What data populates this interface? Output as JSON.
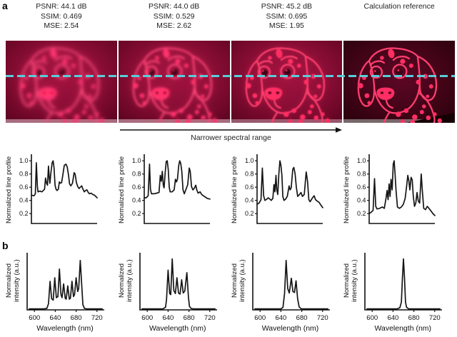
{
  "panels": {
    "a": "a",
    "b": "b"
  },
  "header": {
    "columns": [
      {
        "lines": [
          "PSNR: 44.1 dB",
          "SSIM: 0.469",
          "MSE: 2.54"
        ]
      },
      {
        "lines": [
          "PSNR: 44.0 dB",
          "SSIM: 0.529",
          "MSE: 2.62"
        ]
      },
      {
        "lines": [
          "PSNR: 45.2 dB",
          "SSIM: 0.695",
          "MSE: 1.95"
        ]
      },
      {
        "lines": [
          "",
          "Calculation reference",
          ""
        ]
      }
    ]
  },
  "arrow": {
    "label": "Narrower spectral range"
  },
  "colors": {
    "scan_line": "#58cdd9",
    "image_bg_bright": "#8a0e36",
    "image_bg_dark": "#33020f",
    "dog_line": "#ff3f6e",
    "dog_spot": "#ff2e63",
    "plot_line": "#151515"
  },
  "chart_data": [
    {
      "type": "line",
      "panel": "a",
      "name": "line_profile_1",
      "ylabel": "Normalized line profile",
      "yticks": [
        0.2,
        0.4,
        0.6,
        0.8,
        1.0
      ],
      "ylim": [
        0.05,
        1.1
      ],
      "xlim": [
        0,
        1
      ],
      "points": [
        [
          0,
          0.48
        ],
        [
          0.04,
          0.47
        ],
        [
          0.06,
          0.5
        ],
        [
          0.075,
          0.97
        ],
        [
          0.09,
          0.62
        ],
        [
          0.1,
          0.53
        ],
        [
          0.13,
          0.54
        ],
        [
          0.16,
          0.53
        ],
        [
          0.18,
          0.55
        ],
        [
          0.2,
          0.57
        ],
        [
          0.215,
          0.74
        ],
        [
          0.23,
          0.66
        ],
        [
          0.245,
          0.63
        ],
        [
          0.26,
          0.92
        ],
        [
          0.272,
          0.74
        ],
        [
          0.282,
          0.66
        ],
        [
          0.295,
          0.8
        ],
        [
          0.315,
          0.97
        ],
        [
          0.33,
          1.0
        ],
        [
          0.345,
          0.89
        ],
        [
          0.36,
          0.63
        ],
        [
          0.375,
          0.57
        ],
        [
          0.39,
          0.55
        ],
        [
          0.41,
          0.57
        ],
        [
          0.425,
          0.68
        ],
        [
          0.44,
          0.66
        ],
        [
          0.46,
          0.67
        ],
        [
          0.48,
          0.8
        ],
        [
          0.5,
          0.93
        ],
        [
          0.525,
          0.95
        ],
        [
          0.545,
          0.91
        ],
        [
          0.565,
          0.78
        ],
        [
          0.58,
          0.65
        ],
        [
          0.6,
          0.62
        ],
        [
          0.625,
          0.66
        ],
        [
          0.65,
          0.82
        ],
        [
          0.665,
          0.8
        ],
        [
          0.685,
          0.67
        ],
        [
          0.705,
          0.61
        ],
        [
          0.725,
          0.58
        ],
        [
          0.745,
          0.6
        ],
        [
          0.765,
          0.62
        ],
        [
          0.785,
          0.57
        ],
        [
          0.805,
          0.53
        ],
        [
          0.825,
          0.55
        ],
        [
          0.845,
          0.56
        ],
        [
          0.865,
          0.52
        ],
        [
          0.885,
          0.5
        ],
        [
          0.91,
          0.51
        ],
        [
          0.935,
          0.49
        ],
        [
          0.96,
          0.48
        ],
        [
          1,
          0.44
        ]
      ]
    },
    {
      "type": "line",
      "panel": "a",
      "name": "line_profile_2",
      "ylabel": "Normalized line profile",
      "yticks": [
        0.2,
        0.4,
        0.6,
        0.8,
        1.0
      ],
      "ylim": [
        0.05,
        1.1
      ],
      "xlim": [
        0,
        1
      ],
      "points": [
        [
          0,
          0.44
        ],
        [
          0.03,
          0.44
        ],
        [
          0.06,
          0.47
        ],
        [
          0.08,
          0.95
        ],
        [
          0.095,
          0.57
        ],
        [
          0.11,
          0.5
        ],
        [
          0.15,
          0.5
        ],
        [
          0.19,
          0.51
        ],
        [
          0.225,
          0.52
        ],
        [
          0.245,
          0.78
        ],
        [
          0.26,
          0.69
        ],
        [
          0.275,
          0.84
        ],
        [
          0.29,
          0.63
        ],
        [
          0.302,
          0.59
        ],
        [
          0.318,
          0.82
        ],
        [
          0.335,
          0.99
        ],
        [
          0.35,
          1.0
        ],
        [
          0.365,
          0.87
        ],
        [
          0.38,
          0.6
        ],
        [
          0.395,
          0.53
        ],
        [
          0.425,
          0.53
        ],
        [
          0.455,
          0.56
        ],
        [
          0.475,
          0.72
        ],
        [
          0.49,
          0.68
        ],
        [
          0.505,
          0.72
        ],
        [
          0.525,
          0.93
        ],
        [
          0.54,
          1.0
        ],
        [
          0.555,
          0.96
        ],
        [
          0.572,
          0.84
        ],
        [
          0.59,
          0.56
        ],
        [
          0.61,
          0.5
        ],
        [
          0.64,
          0.58
        ],
        [
          0.662,
          0.64
        ],
        [
          0.685,
          0.89
        ],
        [
          0.7,
          0.84
        ],
        [
          0.72,
          0.61
        ],
        [
          0.74,
          0.56
        ],
        [
          0.76,
          0.58
        ],
        [
          0.785,
          0.63
        ],
        [
          0.8,
          0.56
        ],
        [
          0.82,
          0.51
        ],
        [
          0.85,
          0.53
        ],
        [
          0.875,
          0.49
        ],
        [
          0.9,
          0.47
        ],
        [
          0.93,
          0.45
        ],
        [
          0.96,
          0.43
        ],
        [
          1,
          0.42
        ]
      ]
    },
    {
      "type": "line",
      "panel": "a",
      "name": "line_profile_3",
      "ylabel": "Normalized line profile",
      "yticks": [
        0.2,
        0.4,
        0.6,
        0.8,
        1.0
      ],
      "ylim": [
        0.05,
        1.1
      ],
      "xlim": [
        0,
        1
      ],
      "points": [
        [
          0,
          0.34
        ],
        [
          0.03,
          0.36
        ],
        [
          0.06,
          0.41
        ],
        [
          0.08,
          0.89
        ],
        [
          0.1,
          0.47
        ],
        [
          0.12,
          0.4
        ],
        [
          0.15,
          0.42
        ],
        [
          0.17,
          0.44
        ],
        [
          0.195,
          0.42
        ],
        [
          0.215,
          0.4
        ],
        [
          0.24,
          0.43
        ],
        [
          0.258,
          0.64
        ],
        [
          0.272,
          0.53
        ],
        [
          0.288,
          0.78
        ],
        [
          0.3,
          0.56
        ],
        [
          0.315,
          0.49
        ],
        [
          0.332,
          0.8
        ],
        [
          0.348,
          1.0
        ],
        [
          0.362,
          0.94
        ],
        [
          0.378,
          0.78
        ],
        [
          0.392,
          0.46
        ],
        [
          0.41,
          0.4
        ],
        [
          0.435,
          0.42
        ],
        [
          0.46,
          0.46
        ],
        [
          0.488,
          0.62
        ],
        [
          0.503,
          0.56
        ],
        [
          0.52,
          0.59
        ],
        [
          0.543,
          0.87
        ],
        [
          0.56,
          0.9
        ],
        [
          0.578,
          0.81
        ],
        [
          0.598,
          0.6
        ],
        [
          0.618,
          0.46
        ],
        [
          0.645,
          0.49
        ],
        [
          0.668,
          0.52
        ],
        [
          0.69,
          0.46
        ],
        [
          0.718,
          0.49
        ],
        [
          0.748,
          0.83
        ],
        [
          0.768,
          0.69
        ],
        [
          0.788,
          0.41
        ],
        [
          0.808,
          0.38
        ],
        [
          0.838,
          0.43
        ],
        [
          0.868,
          0.47
        ],
        [
          0.89,
          0.41
        ],
        [
          0.915,
          0.39
        ],
        [
          0.945,
          0.37
        ],
        [
          0.97,
          0.33
        ],
        [
          1,
          0.29
        ]
      ]
    },
    {
      "type": "line",
      "panel": "a",
      "name": "line_profile_4",
      "ylabel": "Normalized line profile",
      "yticks": [
        0.2,
        0.4,
        0.6,
        0.8,
        1.0
      ],
      "ylim": [
        0.05,
        1.1
      ],
      "xlim": [
        0,
        1
      ],
      "points": [
        [
          0,
          0.2
        ],
        [
          0.03,
          0.22
        ],
        [
          0.06,
          0.25
        ],
        [
          0.082,
          0.73
        ],
        [
          0.1,
          0.31
        ],
        [
          0.12,
          0.27
        ],
        [
          0.16,
          0.28
        ],
        [
          0.2,
          0.3
        ],
        [
          0.23,
          0.28
        ],
        [
          0.258,
          0.44
        ],
        [
          0.273,
          0.55
        ],
        [
          0.288,
          0.41
        ],
        [
          0.303,
          0.65
        ],
        [
          0.318,
          0.46
        ],
        [
          0.333,
          0.72
        ],
        [
          0.35,
          0.56
        ],
        [
          0.366,
          0.95
        ],
        [
          0.38,
          1.0
        ],
        [
          0.395,
          0.79
        ],
        [
          0.41,
          0.54
        ],
        [
          0.43,
          0.3
        ],
        [
          0.46,
          0.28
        ],
        [
          0.49,
          0.3
        ],
        [
          0.52,
          0.34
        ],
        [
          0.548,
          0.43
        ],
        [
          0.572,
          0.63
        ],
        [
          0.588,
          0.78
        ],
        [
          0.603,
          0.7
        ],
        [
          0.62,
          0.56
        ],
        [
          0.638,
          0.75
        ],
        [
          0.655,
          0.71
        ],
        [
          0.672,
          0.46
        ],
        [
          0.69,
          0.31
        ],
        [
          0.71,
          0.36
        ],
        [
          0.728,
          0.52
        ],
        [
          0.748,
          0.39
        ],
        [
          0.768,
          0.36
        ],
        [
          0.792,
          0.8
        ],
        [
          0.81,
          0.54
        ],
        [
          0.83,
          0.28
        ],
        [
          0.858,
          0.26
        ],
        [
          0.885,
          0.31
        ],
        [
          0.91,
          0.28
        ],
        [
          0.94,
          0.24
        ],
        [
          0.97,
          0.2
        ],
        [
          1,
          0.17
        ]
      ]
    },
    {
      "type": "line",
      "panel": "b",
      "name": "spectrum_1",
      "ylabel": "Normalized\nintensity (a.u.)",
      "xlabel": "Wavelength (nm)",
      "xticks": [
        600,
        640,
        680,
        720
      ],
      "xlim": [
        586,
        734
      ],
      "ylim": [
        0,
        1.12
      ],
      "points": [
        [
          590,
          0.02
        ],
        [
          618,
          0.02
        ],
        [
          624,
          0.03
        ],
        [
          627,
          0.12
        ],
        [
          630,
          0.56
        ],
        [
          633,
          0.22
        ],
        [
          636,
          0.19
        ],
        [
          639,
          0.63
        ],
        [
          642,
          0.24
        ],
        [
          645,
          0.26
        ],
        [
          648,
          0.8
        ],
        [
          651,
          0.3
        ],
        [
          653,
          0.24
        ],
        [
          656,
          0.51
        ],
        [
          659,
          0.23
        ],
        [
          661,
          0.21
        ],
        [
          664,
          0.47
        ],
        [
          667,
          0.21
        ],
        [
          669,
          0.23
        ],
        [
          672,
          0.56
        ],
        [
          675,
          0.26
        ],
        [
          677,
          0.3
        ],
        [
          680,
          0.63
        ],
        [
          683,
          0.36
        ],
        [
          685,
          0.42
        ],
        [
          688,
          0.97
        ],
        [
          691,
          0.45
        ],
        [
          693,
          0.1
        ],
        [
          696,
          0.03
        ],
        [
          700,
          0.02
        ],
        [
          730,
          0.02
        ]
      ]
    },
    {
      "type": "line",
      "panel": "b",
      "name": "spectrum_2",
      "ylabel": "Normalized\nintensity (a.u.)",
      "xlabel": "Wavelength (nm)",
      "xticks": [
        600,
        640,
        680,
        720
      ],
      "xlim": [
        586,
        734
      ],
      "ylim": [
        0,
        1.12
      ],
      "points": [
        [
          590,
          0.02
        ],
        [
          630,
          0.02
        ],
        [
          635,
          0.05
        ],
        [
          637,
          0.2
        ],
        [
          640,
          0.78
        ],
        [
          643,
          0.32
        ],
        [
          645,
          0.3
        ],
        [
          648,
          1.0
        ],
        [
          651,
          0.38
        ],
        [
          654,
          0.32
        ],
        [
          657,
          0.63
        ],
        [
          660,
          0.33
        ],
        [
          663,
          0.31
        ],
        [
          666,
          0.59
        ],
        [
          669,
          0.33
        ],
        [
          672,
          0.37
        ],
        [
          676,
          0.73
        ],
        [
          679,
          0.25
        ],
        [
          681,
          0.07
        ],
        [
          684,
          0.03
        ],
        [
          688,
          0.02
        ],
        [
          730,
          0.02
        ]
      ]
    },
    {
      "type": "line",
      "panel": "b",
      "name": "spectrum_3",
      "ylabel": "Normalized\nintensity (a.u.)",
      "xlabel": "Wavelength (nm)",
      "xticks": [
        600,
        640,
        680,
        720
      ],
      "xlim": [
        586,
        734
      ],
      "ylim": [
        0,
        1.12
      ],
      "points": [
        [
          590,
          0.02
        ],
        [
          640,
          0.02
        ],
        [
          644,
          0.05
        ],
        [
          647,
          0.32
        ],
        [
          650,
          0.97
        ],
        [
          653,
          0.42
        ],
        [
          656,
          0.33
        ],
        [
          660,
          0.62
        ],
        [
          663,
          0.36
        ],
        [
          666,
          0.34
        ],
        [
          669,
          0.57
        ],
        [
          672,
          0.22
        ],
        [
          675,
          0.06
        ],
        [
          679,
          0.02
        ],
        [
          730,
          0.02
        ]
      ]
    },
    {
      "type": "line",
      "panel": "b",
      "name": "spectrum_4",
      "ylabel": "Normalized\nintensity (a.u.)",
      "xlabel": "Wavelength (nm)",
      "xticks": [
        600,
        640,
        680,
        720
      ],
      "xlim": [
        586,
        734
      ],
      "ylim": [
        0,
        1.12
      ],
      "points": [
        [
          590,
          0.02
        ],
        [
          648,
          0.02
        ],
        [
          653,
          0.04
        ],
        [
          656,
          0.15
        ],
        [
          658,
          0.6
        ],
        [
          660,
          1.0
        ],
        [
          662,
          0.62
        ],
        [
          664,
          0.15
        ],
        [
          666,
          0.05
        ],
        [
          670,
          0.02
        ],
        [
          730,
          0.02
        ]
      ]
    }
  ]
}
